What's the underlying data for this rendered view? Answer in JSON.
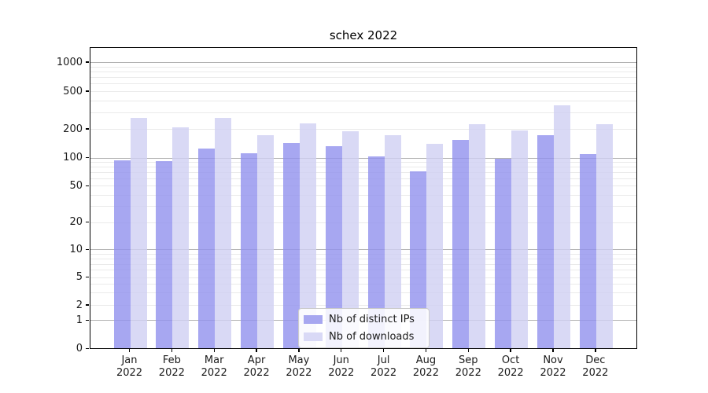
{
  "chart_data": {
    "type": "bar",
    "title": "schex 2022",
    "categories": [
      "Jan 2022",
      "Feb 2022",
      "Mar 2022",
      "Apr 2022",
      "May 2022",
      "Jun 2022",
      "Jul 2022",
      "Aug 2022",
      "Sep 2022",
      "Oct 2022",
      "Nov 2022",
      "Dec 2022"
    ],
    "series": [
      {
        "name": "Nb of distinct IPs",
        "color": "rgba(145,145,238,0.8)",
        "legend_color": "#a7a7f0",
        "values": [
          95,
          93,
          127,
          113,
          145,
          135,
          106,
          73,
          157,
          100,
          176,
          111
        ]
      },
      {
        "name": "Nb of downloads",
        "color": "rgba(207,207,243,0.8)",
        "legend_color": "#d9d9f6",
        "values": [
          266,
          210,
          265,
          176,
          233,
          193,
          175,
          143,
          227,
          198,
          359,
          230
        ]
      }
    ],
    "y_ticks": [
      1000,
      500,
      200,
      100,
      50,
      20,
      10,
      5,
      2,
      1,
      0
    ],
    "y_minor_gridlines": [
      2,
      3,
      4,
      5,
      6,
      7,
      8,
      9,
      20,
      30,
      40,
      50,
      60,
      70,
      80,
      90,
      200,
      300,
      400,
      500,
      600,
      700,
      800,
      900
    ],
    "y_major_gridlines": [
      1,
      10,
      100,
      1000
    ],
    "yscale": "log",
    "ylim": [
      0,
      1400
    ],
    "grid": "on",
    "legend_position": "lower center",
    "grid_major_color": "#b2b2b2",
    "grid_minor_color": "#eaeaea",
    "axis_color": "#000000"
  }
}
